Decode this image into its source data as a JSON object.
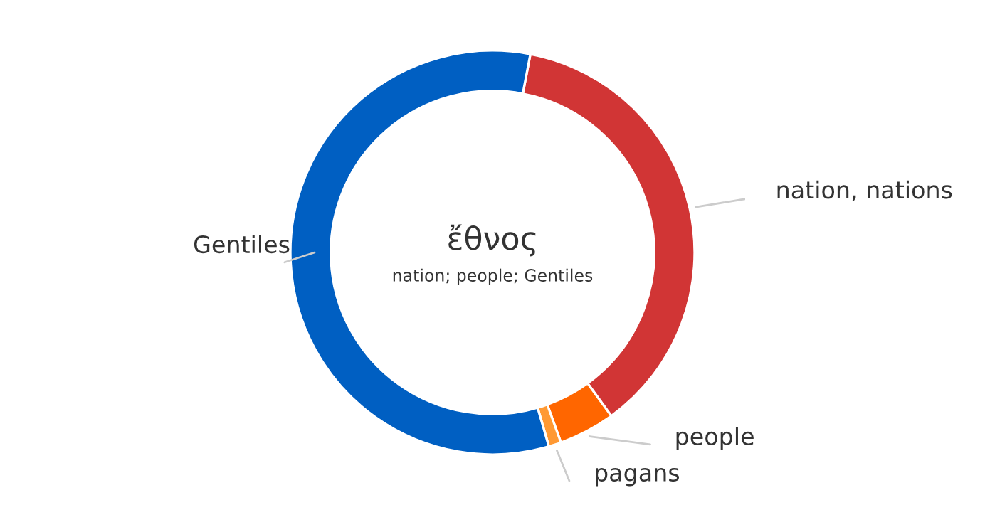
{
  "chart_data": {
    "type": "donut",
    "title": "ἔθνος",
    "subtitle": "nation; people; Gentiles",
    "categories": [
      "nation, nations",
      "people",
      "pagans",
      "Gentiles"
    ],
    "values": [
      37,
      4.5,
      1,
      57.5
    ],
    "colors": [
      "#d13535",
      "#ff6600",
      "#ff9933",
      "#005fc2"
    ]
  }
}
